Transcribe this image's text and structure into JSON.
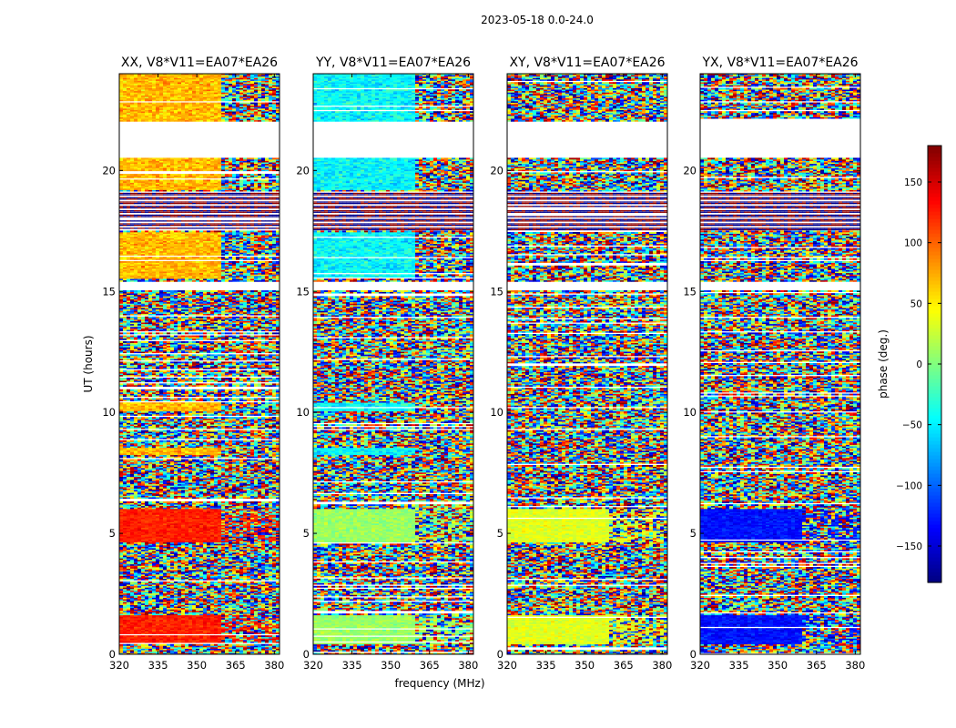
{
  "figure": {
    "suptitle": "2023-05-18 0.0-24.0",
    "xlabel": "frequency (MHz)",
    "ylabel": "UT (hours)"
  },
  "colorbar": {
    "label": "phase (deg.)",
    "range": [
      -180,
      180
    ],
    "ticks": [
      -150,
      -100,
      -50,
      0,
      50,
      100,
      150
    ],
    "tick_labels": [
      "−150",
      "−100",
      "−50",
      "0",
      "50",
      "100",
      "150"
    ],
    "colormap": "jet",
    "colors": [
      "#00007f",
      "#0000ff",
      "#007fff",
      "#00ffff",
      "#7fff7f",
      "#ffff00",
      "#ff7f00",
      "#ff0000",
      "#7f0000"
    ]
  },
  "chart_data": [
    {
      "type": "heatmap",
      "title": "XX, V8*V11=EA07*EA26",
      "xlabel": "frequency (MHz)",
      "ylabel": "UT (hours)",
      "xlim": [
        320,
        382
      ],
      "ylim": [
        0,
        24
      ],
      "xticks": [
        320,
        335,
        350,
        365,
        380
      ],
      "yticks": [
        0,
        5,
        10,
        15,
        20
      ],
      "coherent_phase_low_band_deg": 70,
      "coherent_phase_0_to_6h_deg": 125
    },
    {
      "type": "heatmap",
      "title": "YY, V8*V11=EA07*EA26",
      "xlabel": "frequency (MHz)",
      "ylabel": "UT (hours)",
      "xlim": [
        320,
        382
      ],
      "ylim": [
        0,
        24
      ],
      "xticks": [
        320,
        335,
        350,
        365,
        380
      ],
      "yticks": [
        0,
        5,
        10,
        15,
        20
      ],
      "coherent_phase_low_band_deg": -45,
      "coherent_phase_0_to_6h_deg": 10
    },
    {
      "type": "heatmap",
      "title": "XY, V8*V11=EA07*EA26",
      "xlabel": "frequency (MHz)",
      "ylabel": "UT (hours)",
      "xlim": [
        320,
        382
      ],
      "ylim": [
        0,
        24
      ],
      "xticks": [
        320,
        335,
        350,
        365,
        380
      ],
      "yticks": [
        0,
        5,
        10,
        15,
        20
      ],
      "coherent_phase_low_band_deg": null,
      "coherent_phase_0_to_6h_deg": 35
    },
    {
      "type": "heatmap",
      "title": "YX, V8*V11=EA07*EA26",
      "xlabel": "frequency (MHz)",
      "ylabel": "UT (hours)",
      "xlim": [
        320,
        382
      ],
      "ylim": [
        0,
        24
      ],
      "xticks": [
        320,
        335,
        350,
        365,
        380
      ],
      "yticks": [
        0,
        5,
        10,
        15,
        20
      ],
      "coherent_phase_low_band_deg": null,
      "coherent_phase_0_to_6h_deg": -130
    }
  ]
}
